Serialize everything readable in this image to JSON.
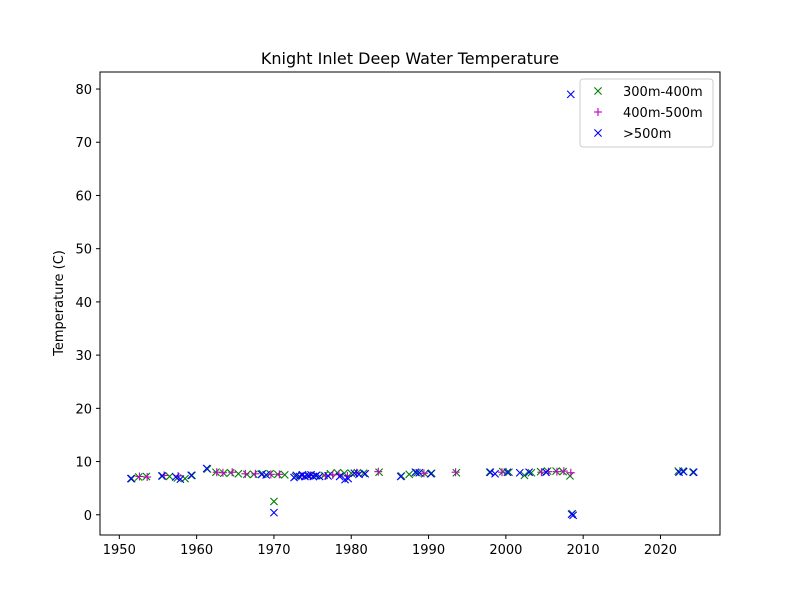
{
  "chart_data": {
    "type": "scatter",
    "title": "Knight Inlet Deep Water Temperature",
    "xlabel": "",
    "ylabel": "Temperature (C)",
    "xlim": [
      1947.5,
      2027.7
    ],
    "ylim": [
      -3.8,
      83.2
    ],
    "xticks": [
      1950,
      1960,
      1970,
      1980,
      1990,
      2000,
      2010,
      2020
    ],
    "yticks": [
      0,
      10,
      20,
      30,
      40,
      50,
      60,
      70,
      80
    ],
    "grid": false,
    "legend_position": "top-right",
    "series": [
      {
        "name": "300m-400m",
        "marker": "x",
        "color": "#008000",
        "points": [
          [
            1951.6,
            6.8
          ],
          [
            1952.5,
            7.1
          ],
          [
            1953.5,
            7.2
          ],
          [
            1955.6,
            7.3
          ],
          [
            1956.5,
            7.2
          ],
          [
            1957.5,
            6.9
          ],
          [
            1958.5,
            6.8
          ],
          [
            1959.4,
            7.4
          ],
          [
            1961.4,
            8.6
          ],
          [
            1962.5,
            8.0
          ],
          [
            1963.5,
            7.8
          ],
          [
            1964.4,
            7.9
          ],
          [
            1965.4,
            7.7
          ],
          [
            1966.5,
            7.6
          ],
          [
            1967.4,
            7.6
          ],
          [
            1968.5,
            7.7
          ],
          [
            1969.5,
            7.7
          ],
          [
            1970.0,
            2.5
          ],
          [
            1970.5,
            7.6
          ],
          [
            1971.4,
            7.5
          ],
          [
            1972.8,
            7.2
          ],
          [
            1973.6,
            7.4
          ],
          [
            1974.5,
            7.4
          ],
          [
            1975.4,
            7.3
          ],
          [
            1976.5,
            7.4
          ],
          [
            1977.3,
            7.7
          ],
          [
            1978.2,
            7.9
          ],
          [
            1979.1,
            7.8
          ],
          [
            1980.0,
            7.8
          ],
          [
            1980.8,
            7.9
          ],
          [
            1981.6,
            7.8
          ],
          [
            1983.6,
            8.0
          ],
          [
            1986.5,
            7.3
          ],
          [
            1987.5,
            7.6
          ],
          [
            1988.5,
            7.9
          ],
          [
            1989.5,
            7.7
          ],
          [
            1990.4,
            7.8
          ],
          [
            1993.6,
            7.9
          ],
          [
            1997.9,
            8.0
          ],
          [
            1999.6,
            8.1
          ],
          [
            2000.4,
            8.0
          ],
          [
            2002.4,
            7.4
          ],
          [
            2003.3,
            7.9
          ],
          [
            2004.5,
            8.1
          ],
          [
            2005.4,
            8.2
          ],
          [
            2006.5,
            8.2
          ],
          [
            2007.4,
            8.1
          ],
          [
            2008.3,
            7.3
          ],
          [
            2008.6,
            0.2
          ],
          [
            2022.3,
            8.2
          ],
          [
            2022.9,
            8.2
          ],
          [
            2024.2,
            8.0
          ]
        ]
      },
      {
        "name": "400m-500m",
        "marker": "+",
        "color": "#bf00bf",
        "points": [
          [
            1952.6,
            7.2
          ],
          [
            1953.6,
            7.1
          ],
          [
            1955.8,
            7.4
          ],
          [
            1957.6,
            7.3
          ],
          [
            1962.6,
            8.0
          ],
          [
            1963.4,
            7.9
          ],
          [
            1964.6,
            8.0
          ],
          [
            1966.3,
            7.7
          ],
          [
            1967.6,
            7.7
          ],
          [
            1969.6,
            7.6
          ],
          [
            1970.7,
            7.6
          ],
          [
            1973.8,
            7.3
          ],
          [
            1974.7,
            7.4
          ],
          [
            1976.7,
            7.3
          ],
          [
            1977.6,
            7.5
          ],
          [
            1978.4,
            7.6
          ],
          [
            1979.5,
            7.3
          ],
          [
            1980.7,
            7.9
          ],
          [
            1983.5,
            8.1
          ],
          [
            1989.4,
            7.8
          ],
          [
            1993.5,
            8.0
          ],
          [
            1999.5,
            8.0
          ],
          [
            2004.6,
            8.0
          ],
          [
            2005.5,
            8.1
          ],
          [
            2006.6,
            8.1
          ],
          [
            2007.5,
            8.2
          ],
          [
            2008.4,
            7.9
          ]
        ]
      },
      {
        "name": ">500m",
        "marker": "x",
        "color": "#0000ff",
        "points": [
          [
            1951.5,
            6.8
          ],
          [
            1955.5,
            7.3
          ],
          [
            1957.3,
            7.1
          ],
          [
            1957.9,
            6.7
          ],
          [
            1959.3,
            7.4
          ],
          [
            1961.3,
            8.7
          ],
          [
            1968.4,
            7.6
          ],
          [
            1969.0,
            7.5
          ],
          [
            1970.0,
            0.4
          ],
          [
            1972.6,
            7.0
          ],
          [
            1972.9,
            7.4
          ],
          [
            1973.3,
            7.2
          ],
          [
            1973.7,
            7.5
          ],
          [
            1974.0,
            7.2
          ],
          [
            1974.4,
            7.3
          ],
          [
            1974.8,
            7.5
          ],
          [
            1975.1,
            7.2
          ],
          [
            1975.5,
            7.4
          ],
          [
            1975.9,
            7.2
          ],
          [
            1977.0,
            7.3
          ],
          [
            1978.5,
            7.2
          ],
          [
            1979.2,
            6.6
          ],
          [
            1979.6,
            6.8
          ],
          [
            1980.4,
            7.8
          ],
          [
            1981.0,
            7.6
          ],
          [
            1981.8,
            7.7
          ],
          [
            1986.4,
            7.2
          ],
          [
            1988.3,
            8.0
          ],
          [
            1988.8,
            7.9
          ],
          [
            1990.3,
            7.7
          ],
          [
            1998.0,
            8.0
          ],
          [
            1998.6,
            7.7
          ],
          [
            2000.2,
            8.0
          ],
          [
            2001.8,
            7.9
          ],
          [
            2003.0,
            8.0
          ],
          [
            2005.2,
            8.0
          ],
          [
            2008.4,
            79.0
          ],
          [
            2008.5,
            0.1
          ],
          [
            2008.7,
            -0.1
          ],
          [
            2022.4,
            8.0
          ],
          [
            2023.0,
            8.1
          ],
          [
            2024.3,
            8.0
          ]
        ]
      }
    ]
  }
}
